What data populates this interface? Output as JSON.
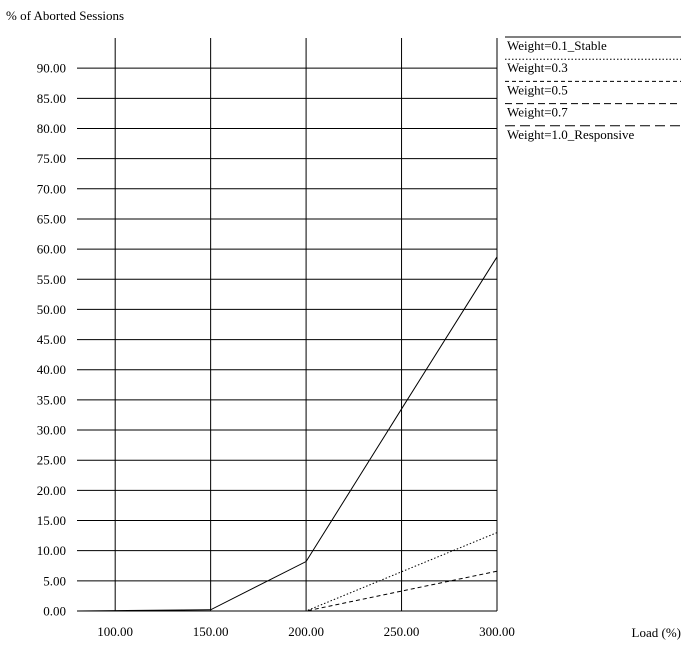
{
  "chart_data": {
    "type": "line",
    "title": "",
    "ylabel": "% of Aborted Sessions",
    "xlabel": "Load (%)",
    "xlim": [
      80,
      300
    ],
    "ylim": [
      0,
      95
    ],
    "xticks": [
      100,
      150,
      200,
      250,
      300
    ],
    "xtick_labels": [
      "100.00",
      "150.00",
      "200.00",
      "250.00",
      "300.00"
    ],
    "yticks": [
      0,
      5,
      10,
      15,
      20,
      25,
      30,
      35,
      40,
      45,
      50,
      55,
      60,
      65,
      70,
      75,
      80,
      85,
      90
    ],
    "ytick_labels": [
      "0.00",
      "5.00",
      "10.00",
      "15.00",
      "20.00",
      "25.00",
      "30.00",
      "35.00",
      "40.00",
      "45.00",
      "50.00",
      "55.00",
      "60.00",
      "65.00",
      "70.00",
      "75.00",
      "80.00",
      "85.00",
      "90.00"
    ],
    "grid": true,
    "legend_position": "top-right, outside plot",
    "x": [
      80,
      150,
      200,
      250,
      300
    ],
    "series": [
      {
        "name": "Weight=0.1_Stable",
        "dash": "solid",
        "values": [
          0,
          0.2,
          8.2,
          33.5,
          58.7
        ]
      },
      {
        "name": "Weight=0.3",
        "dash": "dotted",
        "values": [
          0,
          0,
          0,
          6.5,
          13.0
        ]
      },
      {
        "name": "Weight=0.5",
        "dash": "short-dash",
        "values": [
          0,
          0,
          0,
          3.3,
          6.6
        ]
      },
      {
        "name": "Weight=0.7",
        "dash": "medium-dash",
        "values": [
          0,
          0,
          0,
          0,
          0
        ]
      },
      {
        "name": "Weight=1.0_Responsive",
        "dash": "long-dash",
        "values": [
          0,
          0,
          0,
          0,
          0
        ]
      }
    ]
  }
}
